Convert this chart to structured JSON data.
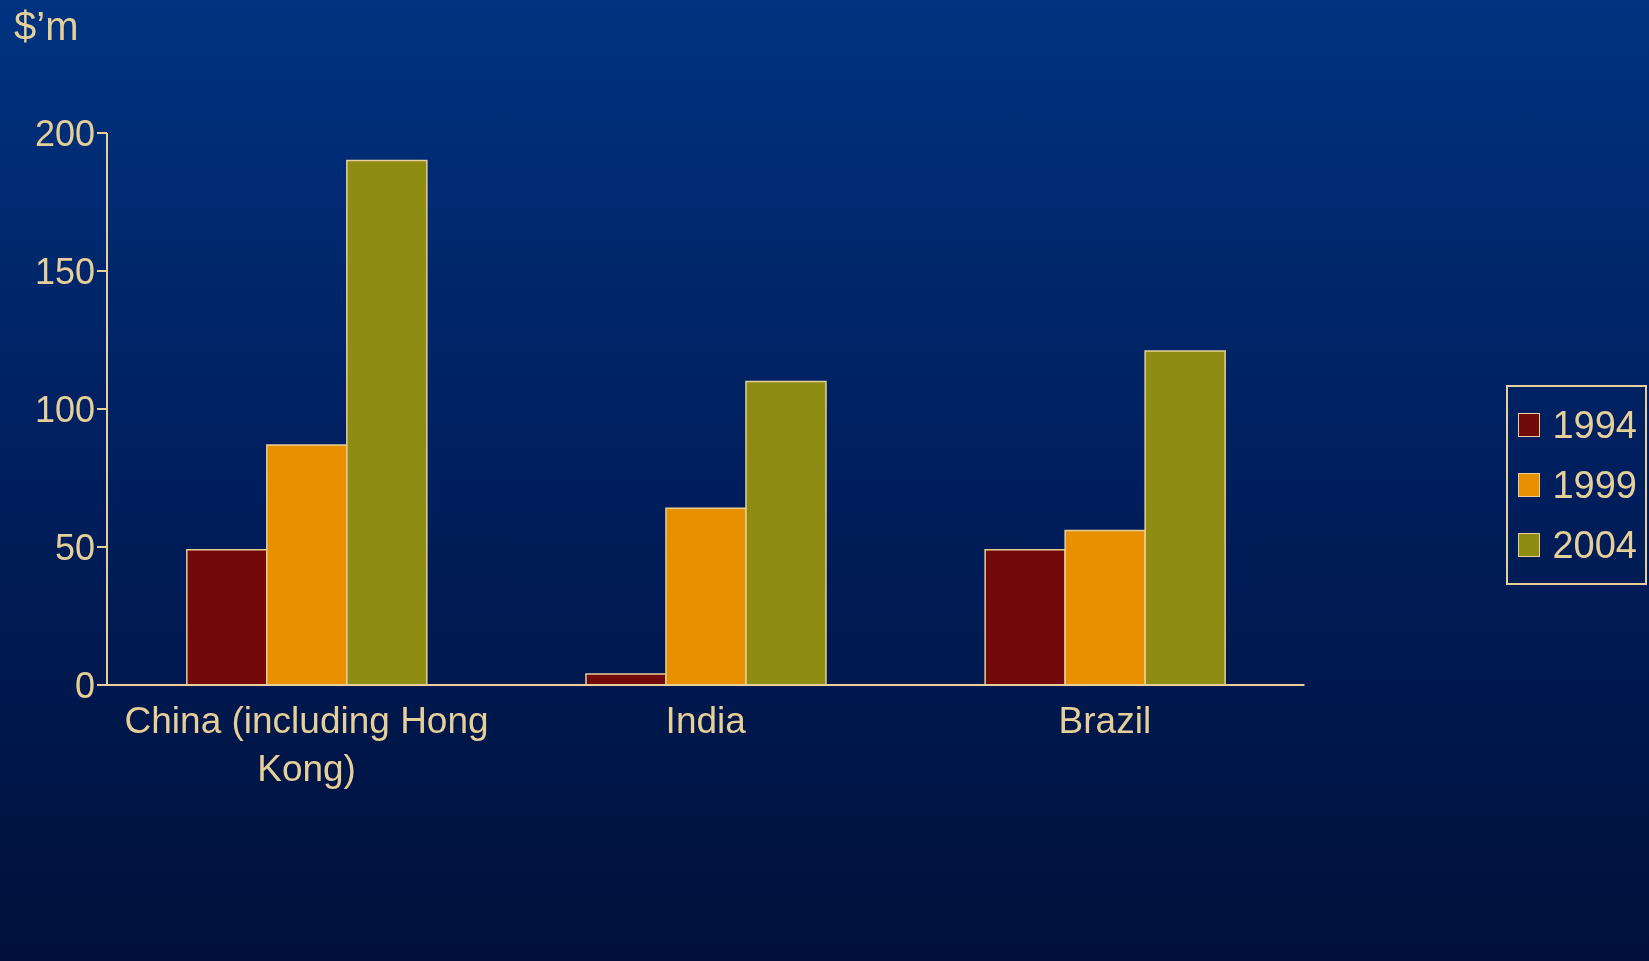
{
  "chart_data": {
    "type": "bar",
    "ylabel": "$’m",
    "categories": [
      "China (including Hong Kong)",
      "India",
      "Brazil"
    ],
    "series": [
      {
        "name": "1994",
        "color": "#720a0a",
        "values": [
          49,
          4,
          49
        ]
      },
      {
        "name": "1999",
        "color": "#e89000",
        "values": [
          87,
          64,
          56
        ]
      },
      {
        "name": "2004",
        "color": "#8f8c14",
        "values": [
          190,
          110,
          121
        ]
      }
    ],
    "ylim": [
      0,
      200
    ],
    "yticks": [
      0,
      50,
      100,
      150,
      200
    ],
    "grid": false,
    "legend": "right"
  }
}
